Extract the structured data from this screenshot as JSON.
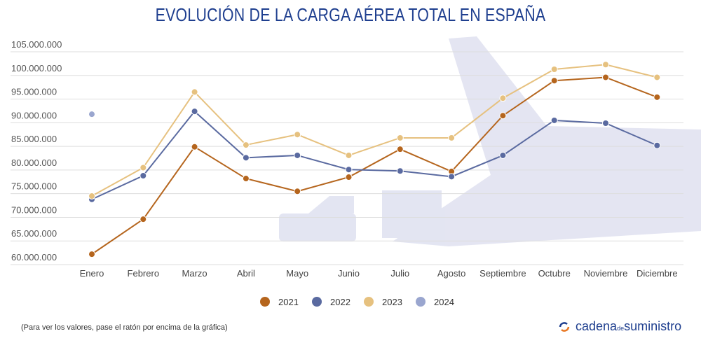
{
  "title": "EVOLUCIÓN DE LA CARGA AÉREA TOTAL EN ESPAÑA",
  "note": "(Para ver los valores, pase el ratón por encima de la gráfica)",
  "logo": {
    "part1": "cadena",
    "part2": "de",
    "part3": "suministro"
  },
  "chart_data": {
    "type": "line",
    "title": "EVOLUCIÓN DE LA CARGA AÉREA TOTAL EN ESPAÑA",
    "categories": [
      "Enero",
      "Febrero",
      "Marzo",
      "Abril",
      "Mayo",
      "Junio",
      "Julio",
      "Agosto",
      "Septiembre",
      "Octubre",
      "Noviembre",
      "Diciembre"
    ],
    "ylim": [
      60000000,
      105000000
    ],
    "yticks": [
      "60.000.000",
      "65.000.000",
      "70.000.000",
      "75.000.000",
      "80.000.000",
      "85.000.000",
      "90.000.000",
      "95.000.000",
      "100.000.000",
      "105.000.000"
    ],
    "grid": true,
    "legend": "bottom",
    "series": [
      {
        "name": "2021",
        "color": "#b5651d",
        "values": [
          62200000,
          69600000,
          84900000,
          78200000,
          75500000,
          78500000,
          84400000,
          79700000,
          91500000,
          98900000,
          99600000,
          95400000
        ]
      },
      {
        "name": "2022",
        "color": "#5a6aa0",
        "values": [
          73800000,
          78800000,
          92400000,
          82600000,
          83100000,
          80100000,
          79800000,
          78600000,
          83100000,
          90500000,
          89900000,
          85200000
        ]
      },
      {
        "name": "2023",
        "color": "#e6c17f",
        "values": [
          74500000,
          80500000,
          96500000,
          85300000,
          87500000,
          83100000,
          86800000,
          86800000,
          95200000,
          101300000,
          102300000,
          99600000
        ]
      },
      {
        "name": "2024",
        "color": "#9aa6cf",
        "values": [
          91800000,
          null,
          null,
          null,
          null,
          null,
          null,
          null,
          null,
          null,
          null,
          null
        ]
      }
    ]
  }
}
